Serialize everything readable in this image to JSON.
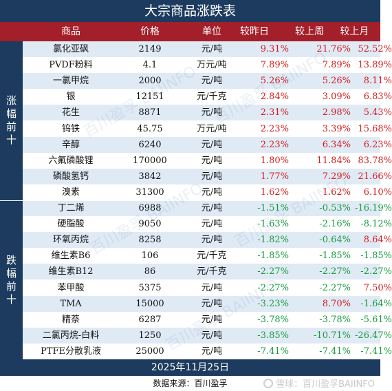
{
  "title": "大宗商品涨跌表",
  "headers": {
    "name": "商品",
    "price": "价格",
    "unit": "单位",
    "d1": "较昨日",
    "d2": "较上周",
    "d3": "较上月"
  },
  "groups": {
    "top": "涨幅前十",
    "bottom": "跌幅前十"
  },
  "rows": [
    {
      "name": "氯化亚砜",
      "price": "2149",
      "unit": "元/吨",
      "d1": "9.31%",
      "d2": "21.76%",
      "d3": "52.52%"
    },
    {
      "name": "PVDF粉料",
      "price": "4.1",
      "unit": "万元/吨",
      "d1": "7.89%",
      "d2": "7.89%",
      "d3": "13.89%"
    },
    {
      "name": "一氯甲烷",
      "price": "2000",
      "unit": "元/吨",
      "d1": "5.26%",
      "d2": "5.26%",
      "d3": "8.11%"
    },
    {
      "name": "银",
      "price": "12151",
      "unit": "元/千克",
      "d1": "2.84%",
      "d2": "3.09%",
      "d3": "6.83%"
    },
    {
      "name": "花生",
      "price": "8871",
      "unit": "元/吨",
      "d1": "2.31%",
      "d2": "2.98%",
      "d3": "5.43%"
    },
    {
      "name": "钨铁",
      "price": "45.75",
      "unit": "万元/吨",
      "d1": "2.23%",
      "d2": "3.39%",
      "d3": "15.68%"
    },
    {
      "name": "辛醇",
      "price": "6240",
      "unit": "元/吨",
      "d1": "2.23%",
      "d2": "6.34%",
      "d3": "6.23%"
    },
    {
      "name": "六氟磷酸锂",
      "price": "170000",
      "unit": "元/吨",
      "d1": "1.80%",
      "d2": "11.84%",
      "d3": "83.78%"
    },
    {
      "name": "磷酸氢钙",
      "price": "3842",
      "unit": "元/吨",
      "d1": "1.77%",
      "d2": "7.29%",
      "d3": "21.66%"
    },
    {
      "name": "溴素",
      "price": "31300",
      "unit": "元/吨",
      "d1": "1.62%",
      "d2": "1.62%",
      "d3": "6.10%"
    },
    {
      "name": "丁二烯",
      "price": "6988",
      "unit": "元/吨",
      "d1": "-1.51%",
      "d2": "-0.53%",
      "d3": "-16.19%"
    },
    {
      "name": "硬脂酸",
      "price": "9050",
      "unit": "元/吨",
      "d1": "-1.63%",
      "d2": "-2.16%",
      "d3": "-8.12%"
    },
    {
      "name": "环氧丙烷",
      "price": "8258",
      "unit": "元/吨",
      "d1": "-1.82%",
      "d2": "-0.64%",
      "d3": "8.64%"
    },
    {
      "name": "维生素B6",
      "price": "106",
      "unit": "元/千克",
      "d1": "-1.85%",
      "d2": "-1.85%",
      "d3": "-1.85%"
    },
    {
      "name": "维生素B12",
      "price": "86",
      "unit": "元/千克",
      "d1": "-2.27%",
      "d2": "-2.27%",
      "d3": "-2.27%"
    },
    {
      "name": "苯甲酸",
      "price": "5375",
      "unit": "元/吨",
      "d1": "-2.27%",
      "d2": "-2.27%",
      "d3": "7.50%"
    },
    {
      "name": "TMA",
      "price": "15000",
      "unit": "元/吨",
      "d1": "-3.23%",
      "d2": "8.70%",
      "d3": "-1.64%"
    },
    {
      "name": "精萘",
      "price": "6287",
      "unit": "元/吨",
      "d1": "-3.78%",
      "d2": "-3.78%",
      "d3": "-5.61%"
    },
    {
      "name": "二氯丙烷-白料",
      "price": "1250",
      "unit": "元/吨",
      "d1": "-3.85%",
      "d2": "-10.71%",
      "d3": "-26.47%"
    },
    {
      "name": "PTFE分散乳液",
      "price": "25000",
      "unit": "元/吨",
      "d1": "-7.41%",
      "d2": "-7.41%",
      "d3": "-7.41%"
    }
  ],
  "date": "2025年11月25日",
  "source": "数据来源：百川盈孚",
  "watermark": "雪球：百川盈孚BAIINFO",
  "background_mark": "百川盈孚 BAIINFO",
  "colors": {
    "header_red": "#a31f2a",
    "navy": "#1c3b5e",
    "stripe": "#dfeaf5",
    "up": "#d61c1c",
    "down": "#179a3c"
  }
}
